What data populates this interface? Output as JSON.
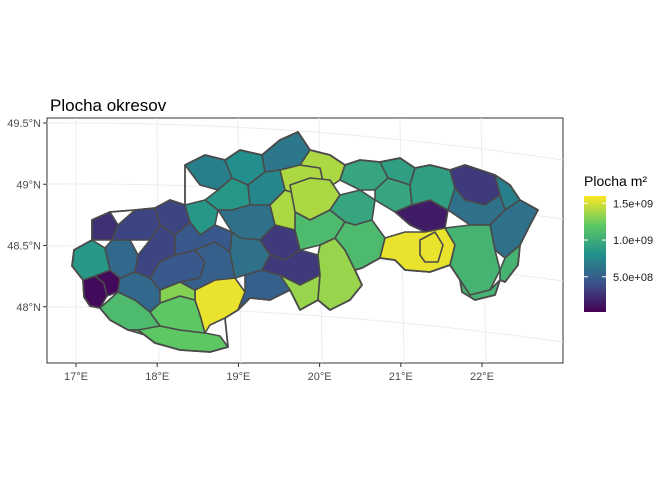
{
  "title": "Plocha okresov",
  "legend": {
    "title": "Plocha m²",
    "ticks": [
      {
        "label": "1.5e+09",
        "value": 1500000000
      },
      {
        "label": "1.0e+09",
        "value": 1000000000
      },
      {
        "label": "5.0e+08",
        "value": 500000000
      }
    ],
    "min": 20000000,
    "max": 1600000000,
    "colors": [
      "#440154",
      "#3b528b",
      "#21918c",
      "#5ec962",
      "#fde725"
    ]
  },
  "axes": {
    "x_ticks": [
      {
        "label": "17°E",
        "value": 17
      },
      {
        "label": "18°E",
        "value": 18
      },
      {
        "label": "19°E",
        "value": 19
      },
      {
        "label": "20°E",
        "value": 20
      },
      {
        "label": "21°E",
        "value": 21
      },
      {
        "label": "22°E",
        "value": 22
      }
    ],
    "y_ticks": [
      {
        "label": "49.5°N",
        "value": 49.5
      },
      {
        "label": "49°N",
        "value": 49.0
      },
      {
        "label": "48.5°N",
        "value": 48.5
      },
      {
        "label": "48°N",
        "value": 48.0
      }
    ],
    "grid": true
  },
  "chart_data": {
    "type": "choropleth",
    "title": "Plocha okresov",
    "legend_title": "Plocha m²",
    "legend_position": "right",
    "xlim": [
      16.8,
      23.0
    ],
    "ylim": [
      47.6,
      49.6
    ],
    "regions": [
      {
        "lon": 17.3,
        "lat": 48.05,
        "value": 100000000
      },
      {
        "lon": 17.2,
        "lat": 48.15,
        "value": 60000000
      },
      {
        "lon": 17.5,
        "lat": 47.95,
        "value": 1100000000
      },
      {
        "lon": 18.2,
        "lat": 47.85,
        "value": 1200000000
      },
      {
        "lon": 18.6,
        "lat": 48.05,
        "value": 1550000000
      },
      {
        "lon": 18.2,
        "lat": 48.05,
        "value": 1300000000
      },
      {
        "lon": 19.9,
        "lat": 48.35,
        "value": 1350000000
      },
      {
        "lon": 19.85,
        "lat": 48.85,
        "value": 1400000000
      },
      {
        "lon": 20.2,
        "lat": 48.6,
        "value": 1100000000
      },
      {
        "lon": 21.2,
        "lat": 48.6,
        "value": 1550000000
      },
      {
        "lon": 21.3,
        "lat": 48.7,
        "value": 150000000
      },
      {
        "lon": 20.9,
        "lat": 48.55,
        "value": 1000000000
      },
      {
        "lon": 21.8,
        "lat": 48.3,
        "value": 1050000000
      },
      {
        "lon": 21.8,
        "lat": 48.6,
        "value": 900000000
      },
      {
        "lon": 22.2,
        "lat": 48.75,
        "value": 600000000
      },
      {
        "lon": 21.3,
        "lat": 49.1,
        "value": 900000000
      },
      {
        "lon": 20.5,
        "lat": 49.05,
        "value": 950000000
      },
      {
        "lon": 21.7,
        "lat": 49.2,
        "value": 350000000
      },
      {
        "lon": 22.0,
        "lat": 49.1,
        "value": 300000000
      },
      {
        "lon": 22.4,
        "lat": 48.9,
        "value": 700000000
      },
      {
        "lon": 18.6,
        "lat": 48.8,
        "value": 850000000
      },
      {
        "lon": 17.1,
        "lat": 48.45,
        "value": 850000000
      },
      {
        "lon": 17.3,
        "lat": 48.75,
        "value": 250000000
      },
      {
        "lon": 18.1,
        "lat": 49.1,
        "value": 400000000
      },
      {
        "lon": 18.5,
        "lat": 49.25,
        "value": 700000000
      },
      {
        "lon": 19.0,
        "lat": 49.3,
        "value": 800000000
      },
      {
        "lon": 19.6,
        "lat": 49.4,
        "value": 650000000
      },
      {
        "lon": 19.0,
        "lat": 48.6,
        "value": 600000000
      },
      {
        "lon": 19.4,
        "lat": 48.7,
        "value": 750000000
      },
      {
        "lon": 19.5,
        "lat": 48.4,
        "value": 300000000
      },
      {
        "lon": 18.9,
        "lat": 48.2,
        "value": 500000000
      },
      {
        "lon": 18.0,
        "lat": 48.6,
        "value": 350000000
      },
      {
        "lon": 17.7,
        "lat": 48.35,
        "value": 550000000
      },
      {
        "lon": 18.3,
        "lat": 48.45,
        "value": 450000000
      }
    ]
  }
}
